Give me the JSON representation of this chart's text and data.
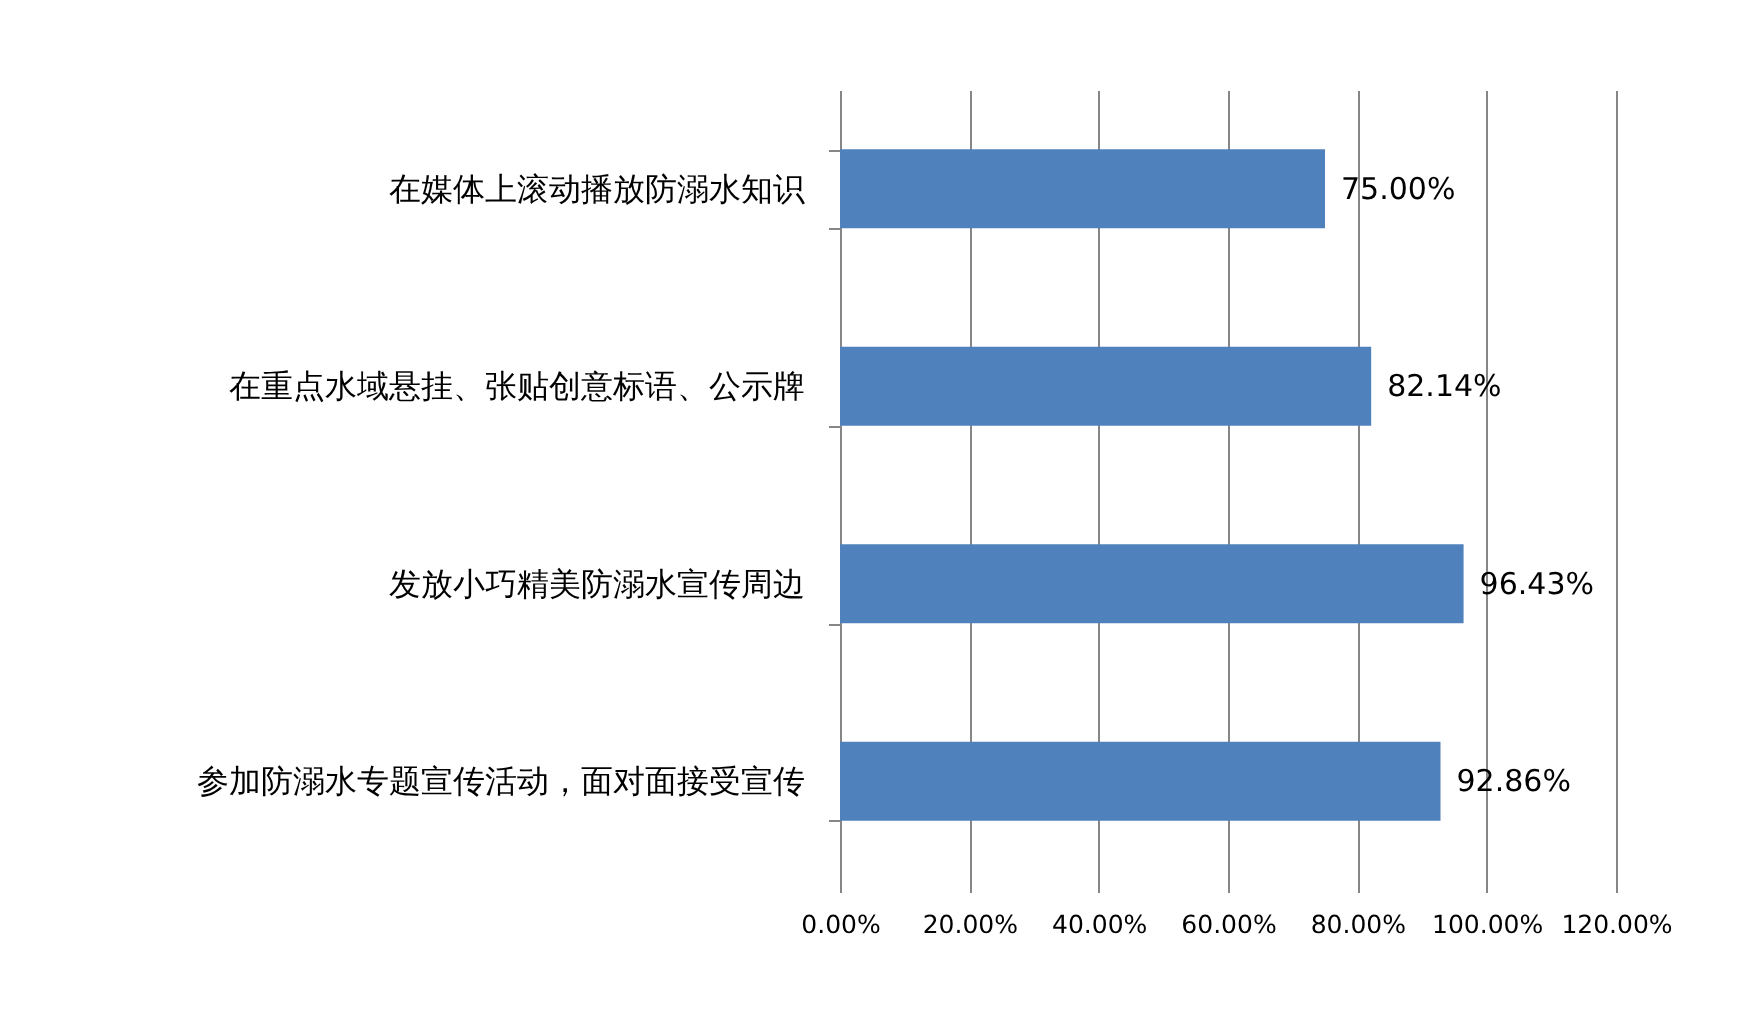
{
  "chart_data": {
    "type": "bar",
    "orientation": "horizontal",
    "categories": [
      "在媒体上滚动播放防溺水知识",
      "在重点水域悬挂、张贴创意标语、公示牌",
      "发放小巧精美防溺水宣传周边",
      "参加防溺水专题宣传活动，面对面接受宣传"
    ],
    "values": [
      75.0,
      82.14,
      96.43,
      92.86
    ],
    "value_labels": [
      "75.00%",
      "82.14%",
      "96.43%",
      "92.86%"
    ],
    "color": "#4f81bd",
    "xlim": [
      0,
      120
    ],
    "xticks": [
      {
        "value": 0,
        "label": "0.00%"
      },
      {
        "value": 20,
        "label": "20.00%"
      },
      {
        "value": 40,
        "label": "40.00%"
      },
      {
        "value": 60,
        "label": "60.00%"
      },
      {
        "value": 80,
        "label": "80.00%"
      },
      {
        "value": 100,
        "label": "100.00%"
      },
      {
        "value": 120,
        "label": "120.00%"
      }
    ],
    "grid": "x"
  }
}
